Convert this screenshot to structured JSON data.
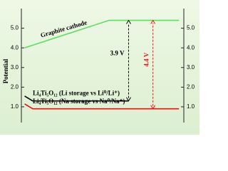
{
  "chart_data": {
    "type": "line",
    "y_label": "Potential",
    "xlim": [
      0,
      10
    ],
    "ylim": [
      0.2,
      6.0
    ],
    "yticks": [
      {
        "value": 1,
        "label": "1.0"
      },
      {
        "value": 2,
        "label": "2.0"
      },
      {
        "value": 3,
        "label": "3.0"
      },
      {
        "value": 4,
        "label": "4.0"
      },
      {
        "value": 5,
        "label": "5.0"
      }
    ],
    "series": [
      {
        "name": "Graphite cathode",
        "color": "#5ce05c",
        "x": [
          0.2,
          5.4,
          9.7
        ],
        "values": [
          4.0,
          5.4,
          5.4
        ]
      },
      {
        "name": "Li₄Ti₅O₁₂ (Li storage vs Li⁰/Li⁺)",
        "color": "#000000",
        "x": [
          0.2,
          0.7,
          6.6
        ],
        "values": [
          1.55,
          1.3,
          1.3
        ]
      },
      {
        "name": "Li₄Ti₅O₁₂ (Na storage vs Na⁰/Na⁺)",
        "color": "#ee1111",
        "x": [
          0.2,
          0.7,
          9.7
        ],
        "values": [
          1.15,
          0.9,
          0.9
        ]
      }
    ],
    "annotations": [
      {
        "text": "3.9 V",
        "color": "#000000"
      },
      {
        "text": "4.4 V",
        "color": "#ee1111"
      }
    ]
  }
}
